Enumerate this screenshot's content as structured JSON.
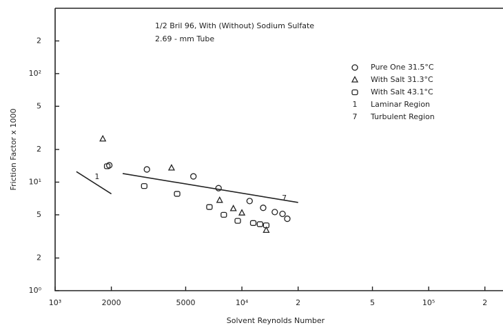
{
  "chart_data": {
    "type": "scatter",
    "title": "1/2 Bril 96, With (Without) Sodium Sulfate",
    "subtitle": "2.69 - mm Tube",
    "x_label": "Solvent Reynolds Number",
    "y_label": "Friction Factor x 1000",
    "log_x": true,
    "log_y": true,
    "xlim": [
      1000,
      250000
    ],
    "ylim": [
      1,
      400
    ],
    "xticks": [
      {
        "value": 1000,
        "label": "10³"
      },
      2000,
      5000,
      {
        "value": 10000,
        "label": "10⁴"
      },
      {
        "value": 20000,
        "label": "2"
      },
      {
        "value": 50000,
        "label": "5"
      },
      {
        "value": 100000,
        "label": "10⁵"
      },
      {
        "value": 200000,
        "label": "2"
      }
    ],
    "yticks": [
      {
        "value": 1,
        "label": "10⁰"
      },
      2,
      5,
      {
        "value": 10,
        "label": "10¹"
      },
      {
        "value": 20,
        "label": "2"
      },
      {
        "value": 50,
        "label": "5"
      },
      {
        "value": 100,
        "label": "10²"
      },
      {
        "value": 200,
        "label": "2"
      }
    ],
    "series": [
      {
        "name": "Pure One 31.5°C",
        "marker": "circle",
        "x": [
          1950,
          3100,
          5500,
          7500,
          11000,
          13000,
          15000,
          16500,
          17500
        ],
        "y": [
          14.3,
          13.1,
          11.3,
          8.8,
          6.7,
          5.8,
          5.3,
          5.1,
          4.6
        ]
      },
      {
        "name": "With Salt 31.3°C",
        "marker": "triangle",
        "x": [
          1800,
          4200,
          7600,
          9000,
          10000,
          13500
        ],
        "y": [
          25,
          13.5,
          6.8,
          5.7,
          5.2,
          3.6
        ]
      },
      {
        "name": "With Salt 43.1°C",
        "marker": "square",
        "x": [
          1900,
          3000,
          4500,
          6700,
          8000,
          9500,
          11500,
          12500,
          13500
        ],
        "y": [
          14,
          9.2,
          7.8,
          5.9,
          5.0,
          4.4,
          4.2,
          4.1,
          4.0
        ]
      },
      {
        "name": "Laminar Region",
        "marker": "1",
        "x": [
          1300,
          2000
        ],
        "y": [
          12.5,
          7.8
        ]
      },
      {
        "name": "Turbulent Region",
        "marker": "7",
        "x": [
          2300,
          20000
        ],
        "y": [
          12,
          6.5
        ]
      }
    ]
  }
}
